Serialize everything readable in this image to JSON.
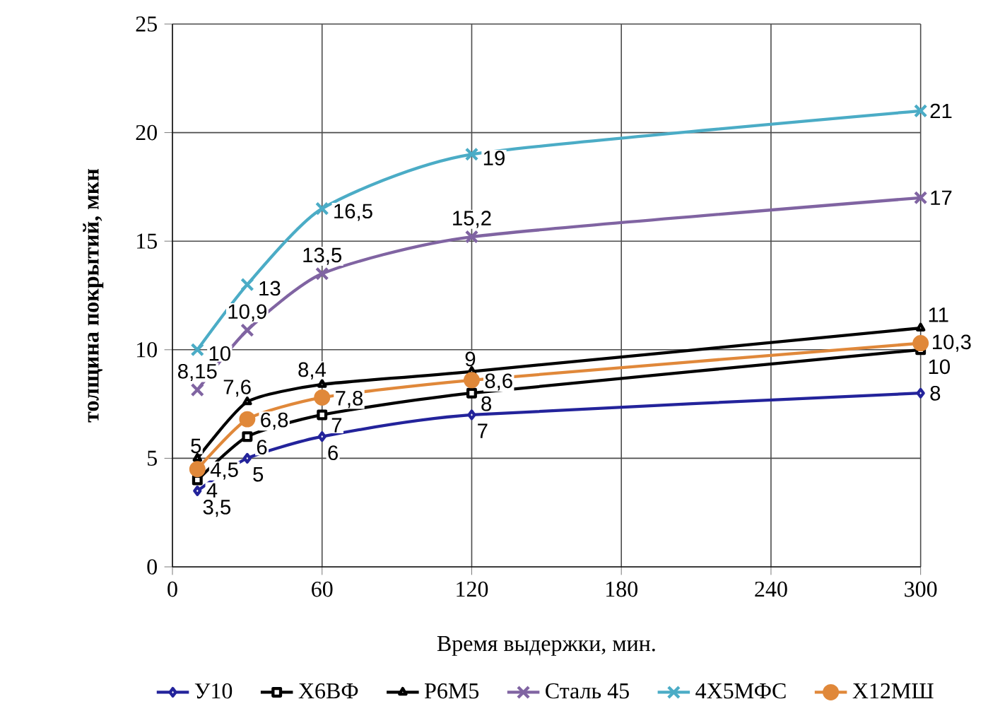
{
  "chart_data": {
    "type": "line",
    "xlabel": "Время выдержки, мин.",
    "ylabel": "толщина покрытий, мкн",
    "xlim": [
      0,
      300
    ],
    "xticks": [
      0,
      60,
      120,
      180,
      240,
      300
    ],
    "ylim": [
      0,
      25
    ],
    "yticks": [
      0,
      5,
      10,
      15,
      20,
      25
    ],
    "grid": true,
    "legend": "bottom",
    "x": [
      10,
      30,
      60,
      120,
      300
    ],
    "series": [
      {
        "name": "У10",
        "color": "#23239b",
        "marker": "diamond",
        "values": [
          3.5,
          5,
          6,
          7,
          8
        ],
        "value_labels": [
          "3,5",
          "5",
          "6",
          "7",
          "8"
        ]
      },
      {
        "name": "Х6ВФ",
        "color": "#000000",
        "marker": "square",
        "values": [
          4,
          6,
          7,
          8,
          10
        ],
        "value_labels": [
          "4",
          "6",
          "7",
          "8",
          "10"
        ]
      },
      {
        "name": "Р6М5",
        "color": "#000000",
        "marker": "triangle",
        "values": [
          5,
          7.6,
          8.4,
          9,
          11
        ],
        "value_labels": [
          "5",
          "7,6",
          "8,4",
          "9",
          "11"
        ]
      },
      {
        "name": "Сталь 45",
        "color": "#8064a2",
        "marker": "cross",
        "values": [
          8.15,
          10.9,
          13.5,
          15.2,
          17
        ],
        "value_labels": [
          "8,15",
          "10,9",
          "13,5",
          "15,2",
          "17"
        ]
      },
      {
        "name": "4Х5МФС",
        "color": "#4bacc6",
        "marker": "cross",
        "values": [
          10,
          13,
          16.5,
          19,
          21
        ],
        "value_labels": [
          "10",
          "13",
          "16,5",
          "19",
          "21"
        ]
      },
      {
        "name": "Х12МШ",
        "color": "#e0883a",
        "marker": "circle",
        "values": [
          4.5,
          6.8,
          7.8,
          8.6,
          10.3
        ],
        "value_labels": [
          "4,5",
          "6,8",
          "7,8",
          "8,6",
          "10,3"
        ]
      }
    ]
  }
}
